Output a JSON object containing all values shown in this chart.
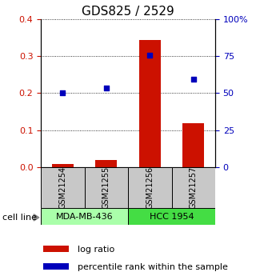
{
  "title": "GDS825 / 2529",
  "categories": [
    "GSM21254",
    "GSM21255",
    "GSM21256",
    "GSM21257"
  ],
  "log_ratio": [
    0.008,
    0.018,
    0.343,
    0.118
  ],
  "percentile_rank": [
    0.2,
    0.213,
    0.303,
    0.238
  ],
  "cell_lines": [
    {
      "label": "MDA-MB-436",
      "color": "#AAFFAA"
    },
    {
      "label": "HCC 1954",
      "color": "#44DD44"
    }
  ],
  "left_ylim": [
    0,
    0.4
  ],
  "left_yticks": [
    0,
    0.1,
    0.2,
    0.3,
    0.4
  ],
  "right_yticks": [
    0,
    25,
    50,
    75,
    100
  ],
  "right_yticklabels": [
    "0",
    "25",
    "50",
    "75",
    "100%"
  ],
  "bar_color": "#CC1100",
  "dot_color": "#0000BB",
  "cell_line_label": "cell line",
  "legend_bar_label": "log ratio",
  "legend_dot_label": "percentile rank within the sample",
  "sample_box_color": "#C8C8C8",
  "title_fontsize": 11,
  "tick_fontsize": 8,
  "legend_fontsize": 8
}
